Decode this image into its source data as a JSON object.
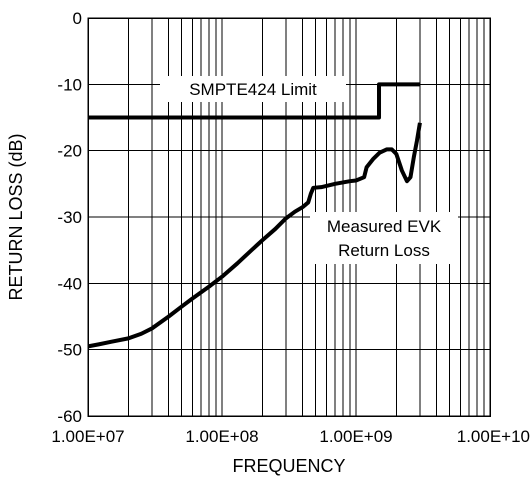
{
  "chart_data": {
    "type": "line",
    "xlabel": "FREQUENCY",
    "ylabel": "RETURN LOSS (dB)",
    "xscale": "log",
    "xlim": [
      10000000,
      10000000000
    ],
    "ylim": [
      -60,
      0
    ],
    "grid": true,
    "x_tick_values": [
      10000000,
      100000000,
      1000000000,
      10000000000
    ],
    "x_tick_labels": [
      "1.00E+07",
      "1.00E+08",
      "1.00E+09",
      "1.00E+10"
    ],
    "y_tick_values": [
      0,
      -10,
      -20,
      -30,
      -40,
      -50,
      -60
    ],
    "y_tick_labels": [
      "0",
      "-10",
      "-20",
      "-30",
      "-40",
      "-50",
      "-60"
    ],
    "annotations": [
      {
        "lines": [
          "SMPTE424 Limit"
        ],
        "series": 0
      },
      {
        "lines": [
          "Measured EVK",
          "Return Loss"
        ],
        "series": 1
      }
    ],
    "series": [
      {
        "name": "SMPTE424 Limit",
        "points": [
          [
            10000000,
            -15
          ],
          [
            1485000000,
            -15
          ],
          [
            1485000000,
            -10
          ],
          [
            3000000000,
            -10
          ]
        ]
      },
      {
        "name": "Measured EVK Return Loss",
        "points": [
          [
            10000000,
            -49.5
          ],
          [
            12000000,
            -49.2
          ],
          [
            15000000,
            -48.8
          ],
          [
            20000000,
            -48.3
          ],
          [
            25000000,
            -47.6
          ],
          [
            30000000,
            -46.8
          ],
          [
            40000000,
            -45.0
          ],
          [
            50000000,
            -43.5
          ],
          [
            60000000,
            -42.3
          ],
          [
            80000000,
            -40.5
          ],
          [
            100000000,
            -39.0
          ],
          [
            130000000,
            -37.0
          ],
          [
            160000000,
            -35.3
          ],
          [
            200000000,
            -33.5
          ],
          [
            250000000,
            -31.8
          ],
          [
            300000000,
            -30.2
          ],
          [
            350000000,
            -29.2
          ],
          [
            400000000,
            -28.5
          ],
          [
            440000000,
            -27.8
          ],
          [
            460000000,
            -26.5
          ],
          [
            480000000,
            -25.6
          ],
          [
            550000000,
            -25.5
          ],
          [
            700000000,
            -25.0
          ],
          [
            900000000,
            -24.6
          ],
          [
            1000000000,
            -24.5
          ],
          [
            1150000000,
            -24.0
          ],
          [
            1200000000,
            -22.5
          ],
          [
            1350000000,
            -21.2
          ],
          [
            1500000000,
            -20.3
          ],
          [
            1700000000,
            -19.8
          ],
          [
            1850000000,
            -19.8
          ],
          [
            2000000000,
            -20.5
          ],
          [
            2200000000,
            -23.0
          ],
          [
            2400000000,
            -24.6
          ],
          [
            2550000000,
            -24.0
          ],
          [
            2700000000,
            -21.0
          ],
          [
            2850000000,
            -18.5
          ],
          [
            3000000000,
            -15.8
          ]
        ]
      }
    ]
  }
}
